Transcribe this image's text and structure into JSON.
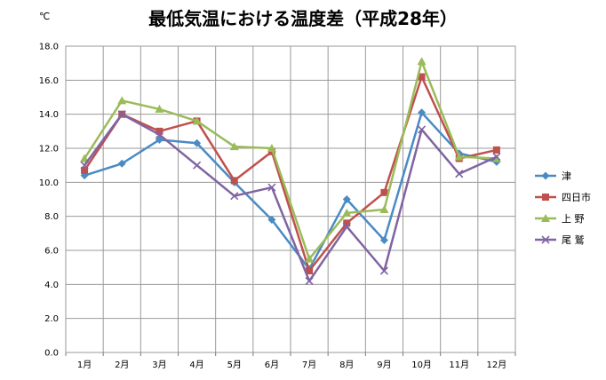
{
  "chart_data": {
    "type": "line",
    "title": "最低気温における温度差（平成28年）",
    "unit_label": "℃",
    "categories": [
      "1月",
      "2月",
      "3月",
      "4月",
      "5月",
      "6月",
      "7月",
      "8月",
      "9月",
      "10月",
      "11月",
      "12月"
    ],
    "ylim": [
      0,
      18
    ],
    "yticks": [
      0.0,
      2.0,
      4.0,
      6.0,
      8.0,
      10.0,
      12.0,
      14.0,
      16.0,
      18.0
    ],
    "ytick_labels": [
      "0.0",
      "2.0",
      "4.0",
      "6.0",
      "8.0",
      "10.0",
      "12.0",
      "14.0",
      "16.0",
      "18.0"
    ],
    "grid": true,
    "legend_position": "right",
    "series": [
      {
        "name": "津",
        "color": "#4a8bc4",
        "marker": "diamond",
        "values": [
          10.4,
          11.1,
          12.5,
          12.3,
          10.0,
          7.8,
          4.9,
          9.0,
          6.6,
          14.1,
          11.7,
          11.2
        ]
      },
      {
        "name": "四日市",
        "color": "#c0504d",
        "marker": "square",
        "values": [
          10.7,
          14.0,
          13.0,
          13.6,
          10.1,
          11.8,
          4.8,
          7.6,
          9.4,
          16.2,
          11.4,
          11.9
        ]
      },
      {
        "name": "上 野",
        "color": "#9bbb59",
        "marker": "triangle",
        "values": [
          11.4,
          14.8,
          14.3,
          13.6,
          12.1,
          12.0,
          5.5,
          8.2,
          8.4,
          17.1,
          11.5,
          11.4
        ]
      },
      {
        "name": "尾 鷲",
        "color": "#8064a2",
        "marker": "x",
        "values": [
          11.0,
          14.0,
          12.8,
          11.0,
          9.2,
          9.7,
          4.2,
          7.4,
          4.8,
          13.1,
          10.5,
          11.5
        ]
      }
    ]
  }
}
